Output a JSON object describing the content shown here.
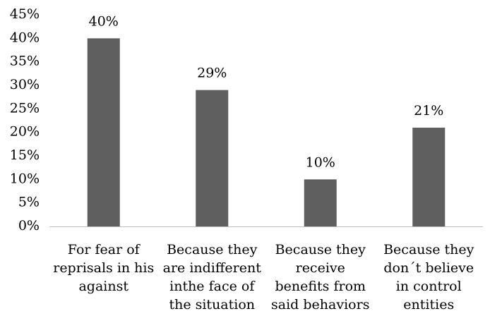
{
  "chart_data": {
    "type": "bar",
    "categories": [
      [
        "For fear of",
        "reprisals in his",
        "against"
      ],
      [
        "Because they",
        "are indifferent",
        "inthe face of",
        "the situation"
      ],
      [
        "Because they",
        "receive",
        "benefits from",
        "said behaviors"
      ],
      [
        "Because they",
        "don´t believe",
        "in control",
        "entities"
      ]
    ],
    "values": [
      40,
      29,
      10,
      21
    ],
    "data_labels": [
      "40%",
      "29%",
      "10%",
      "21%"
    ],
    "ylim": [
      0,
      45
    ],
    "yticks": [
      0,
      5,
      10,
      15,
      20,
      25,
      30,
      35,
      40,
      45
    ],
    "ytick_labels": [
      "0%",
      "5%",
      "10%",
      "15%",
      "20%",
      "25%",
      "30%",
      "35%",
      "40%",
      "45%"
    ],
    "grid": false,
    "bar_color": "#5f5f5f",
    "axis_color": "#bfbfbf"
  }
}
